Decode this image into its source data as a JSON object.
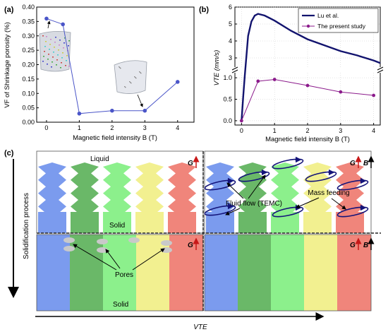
{
  "panels": {
    "a": {
      "label": "(a)"
    },
    "b": {
      "label": "(b)"
    },
    "c": {
      "label": "(c)"
    }
  },
  "chart_data": [
    {
      "id": "a",
      "type": "scatter",
      "xlabel": "Magnetic field intensity B (T)",
      "ylabel": "VF of Shrinkage porosity (%)",
      "xlim": [
        -0.3,
        4.5
      ],
      "ylim": [
        0.0,
        0.4
      ],
      "xticks": [
        0,
        1,
        2,
        3,
        4
      ],
      "yticks": [
        0.0,
        0.05,
        0.1,
        0.15,
        0.2,
        0.25,
        0.3,
        0.35,
        0.4
      ],
      "x": [
        0,
        0.5,
        1,
        2,
        3,
        4
      ],
      "y": [
        0.36,
        0.34,
        0.03,
        0.04,
        0.04,
        0.14
      ],
      "color": "#4a55c8"
    },
    {
      "id": "b",
      "type": "line",
      "xlabel": "Magnetic field intensity B (T)",
      "ylabel": "VTE (mm/s)",
      "xlim": [
        -0.2,
        4.2
      ],
      "xticks": [
        0,
        1,
        2,
        3,
        4
      ],
      "axis_break": true,
      "upper_ylim": [
        2.5,
        6
      ],
      "upper_yticks": [
        3,
        4,
        5,
        6
      ],
      "lower_ylim": [
        -0.1,
        1.1
      ],
      "lower_yticks": [
        0.0,
        0.5,
        1.0
      ],
      "legend_position": "top-right",
      "series": [
        {
          "name": "Lu et al.",
          "color": "#12136e",
          "x": [
            0.0,
            0.05,
            0.1,
            0.2,
            0.3,
            0.4,
            0.5,
            0.7,
            1.0,
            1.5,
            2.0,
            2.5,
            3.0,
            3.5,
            4.0,
            4.2
          ],
          "y": [
            0.0,
            0.55,
            1.05,
            4.3,
            5.15,
            5.5,
            5.6,
            5.5,
            5.2,
            4.6,
            4.1,
            3.75,
            3.4,
            3.15,
            2.85,
            2.7
          ]
        },
        {
          "name": "The present study",
          "color": "#8b1a8b",
          "x": [
            0,
            0.5,
            1,
            2,
            3,
            4
          ],
          "y": [
            0.0,
            0.92,
            0.96,
            0.82,
            0.67,
            0.59
          ]
        }
      ]
    }
  ],
  "schematic": {
    "label_liquid": "Liquid",
    "label_solid": "Solid",
    "label_solid_bottom": "Solid",
    "label_pores": "Pores",
    "label_fluid_flow": "Fluid flow (TEMC)",
    "label_mass_feeding": "Mass feeding",
    "label_g": "G",
    "label_b": "B",
    "label_process": "Solidification process",
    "label_vte": "VTE",
    "column_colors": [
      "#7b9bee",
      "#6ab868",
      "#8cf08c",
      "#f2f090",
      "#f0857b"
    ]
  }
}
